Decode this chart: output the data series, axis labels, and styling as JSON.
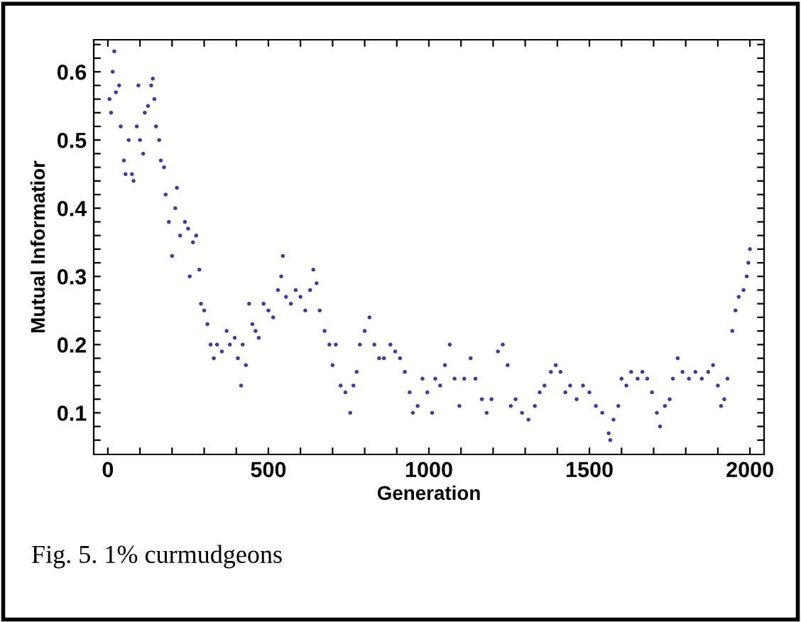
{
  "chart_data": {
    "type": "scatter",
    "xlabel": "Generation",
    "ylabel": "Mutual Informatior",
    "annotations": [
      "Fig. 5. 1% curmudgeons"
    ],
    "xlim": [
      -44,
      2044
    ],
    "ylim": [
      0.039,
      0.647
    ],
    "xticks": [
      0,
      {
        "value": 100,
        "label": null
      },
      {
        "value": 200,
        "label": null
      },
      {
        "value": 300,
        "label": null
      },
      {
        "value": 400,
        "label": null
      },
      500,
      {
        "value": 600,
        "label": null
      },
      {
        "value": 700,
        "label": null
      },
      {
        "value": 800,
        "label": null
      },
      {
        "value": 900,
        "label": null
      },
      1000,
      {
        "value": 1100,
        "label": null
      },
      {
        "value": 1200,
        "label": null
      },
      {
        "value": 1300,
        "label": null
      },
      {
        "value": 1400,
        "label": null
      },
      1500,
      {
        "value": 1600,
        "label": null
      },
      {
        "value": 1700,
        "label": null
      },
      {
        "value": 1800,
        "label": null
      },
      {
        "value": 1900,
        "label": null
      },
      2000
    ],
    "yticks": [
      {
        "value": 0.06,
        "label": null
      },
      {
        "value": 0.08,
        "label": null
      },
      0.1,
      {
        "value": 0.12,
        "label": null
      },
      {
        "value": 0.14,
        "label": null
      },
      {
        "value": 0.16,
        "label": null
      },
      {
        "value": 0.18,
        "label": null
      },
      0.2,
      {
        "value": 0.22,
        "label": null
      },
      {
        "value": 0.24,
        "label": null
      },
      {
        "value": 0.26,
        "label": null
      },
      {
        "value": 0.28,
        "label": null
      },
      0.3,
      {
        "value": 0.32,
        "label": null
      },
      {
        "value": 0.34,
        "label": null
      },
      {
        "value": 0.36,
        "label": null
      },
      {
        "value": 0.38,
        "label": null
      },
      0.4,
      {
        "value": 0.42,
        "label": null
      },
      {
        "value": 0.44,
        "label": null
      },
      {
        "value": 0.46,
        "label": null
      },
      {
        "value": 0.48,
        "label": null
      },
      0.5,
      {
        "value": 0.52,
        "label": null
      },
      {
        "value": 0.54,
        "label": null
      },
      {
        "value": 0.56,
        "label": null
      },
      {
        "value": 0.58,
        "label": null
      },
      0.6,
      {
        "value": 0.62,
        "label": null
      },
      {
        "value": 0.64,
        "label": null
      }
    ],
    "grid": false,
    "legend": false,
    "marker": "circle",
    "series": [
      {
        "color": "#3c3c9c",
        "x": [
          5,
          10,
          15,
          20,
          25,
          35,
          40,
          50,
          55,
          65,
          75,
          80,
          90,
          95,
          100,
          110,
          115,
          125,
          135,
          140,
          145,
          150,
          160,
          165,
          175,
          180,
          190,
          200,
          210,
          215,
          225,
          240,
          250,
          255,
          265,
          275,
          285,
          290,
          300,
          310,
          320,
          330,
          340,
          355,
          370,
          380,
          395,
          405,
          415,
          420,
          430,
          440,
          450,
          460,
          470,
          485,
          500,
          515,
          530,
          540,
          545,
          555,
          570,
          585,
          600,
          615,
          630,
          640,
          650,
          660,
          675,
          690,
          700,
          710,
          725,
          740,
          755,
          765,
          775,
          785,
          800,
          815,
          830,
          845,
          860,
          880,
          895,
          910,
          925,
          940,
          950,
          965,
          980,
          995,
          1010,
          1020,
          1035,
          1050,
          1065,
          1080,
          1095,
          1110,
          1130,
          1145,
          1165,
          1180,
          1195,
          1215,
          1230,
          1245,
          1255,
          1270,
          1290,
          1310,
          1330,
          1345,
          1360,
          1380,
          1395,
          1410,
          1425,
          1440,
          1460,
          1480,
          1500,
          1520,
          1540,
          1560,
          1565,
          1575,
          1590,
          1600,
          1615,
          1630,
          1650,
          1665,
          1680,
          1695,
          1710,
          1720,
          1735,
          1750,
          1760,
          1775,
          1790,
          1810,
          1830,
          1850,
          1870,
          1885,
          1900,
          1910,
          1920,
          1930,
          1945,
          1955,
          1965,
          1980,
          1990,
          1995,
          2000
        ],
        "values": [
          0.56,
          0.54,
          0.6,
          0.63,
          0.57,
          0.58,
          0.52,
          0.47,
          0.45,
          0.5,
          0.45,
          0.44,
          0.52,
          0.58,
          0.5,
          0.48,
          0.54,
          0.55,
          0.58,
          0.59,
          0.56,
          0.52,
          0.5,
          0.47,
          0.46,
          0.42,
          0.38,
          0.33,
          0.4,
          0.43,
          0.36,
          0.38,
          0.37,
          0.3,
          0.35,
          0.36,
          0.31,
          0.26,
          0.25,
          0.23,
          0.2,
          0.18,
          0.2,
          0.19,
          0.22,
          0.2,
          0.21,
          0.18,
          0.14,
          0.2,
          0.17,
          0.26,
          0.23,
          0.22,
          0.21,
          0.26,
          0.25,
          0.24,
          0.28,
          0.3,
          0.33,
          0.27,
          0.26,
          0.28,
          0.27,
          0.25,
          0.28,
          0.31,
          0.29,
          0.25,
          0.22,
          0.2,
          0.17,
          0.2,
          0.14,
          0.13,
          0.1,
          0.14,
          0.16,
          0.2,
          0.22,
          0.24,
          0.2,
          0.18,
          0.18,
          0.2,
          0.19,
          0.18,
          0.16,
          0.13,
          0.1,
          0.11,
          0.15,
          0.13,
          0.1,
          0.15,
          0.14,
          0.17,
          0.2,
          0.15,
          0.11,
          0.15,
          0.18,
          0.15,
          0.12,
          0.1,
          0.12,
          0.19,
          0.2,
          0.17,
          0.11,
          0.12,
          0.1,
          0.09,
          0.11,
          0.13,
          0.14,
          0.16,
          0.17,
          0.16,
          0.13,
          0.14,
          0.12,
          0.14,
          0.13,
          0.11,
          0.1,
          0.07,
          0.06,
          0.09,
          0.11,
          0.15,
          0.14,
          0.16,
          0.15,
          0.16,
          0.15,
          0.13,
          0.1,
          0.08,
          0.11,
          0.12,
          0.15,
          0.18,
          0.16,
          0.15,
          0.16,
          0.15,
          0.16,
          0.17,
          0.14,
          0.11,
          0.12,
          0.15,
          0.22,
          0.25,
          0.27,
          0.28,
          0.3,
          0.32,
          0.34
        ]
      }
    ]
  }
}
